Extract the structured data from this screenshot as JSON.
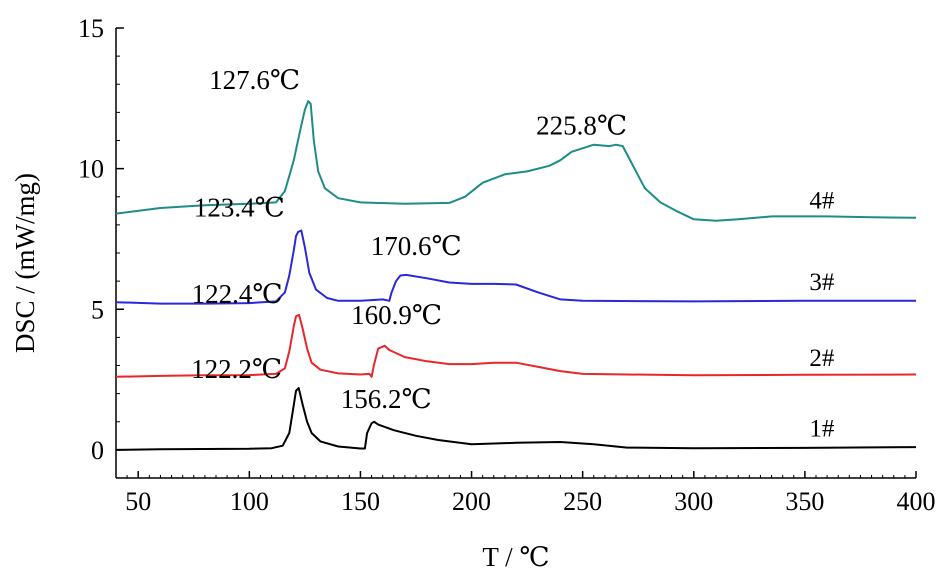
{
  "chart_data": {
    "type": "line",
    "xlabel": "T / ℃",
    "ylabel": "DSC / (mW/mg)",
    "xlim": [
      40,
      400
    ],
    "ylim": [
      -1,
      15
    ],
    "xticks": [
      50,
      100,
      150,
      200,
      250,
      300,
      350,
      400
    ],
    "yticks": [
      0,
      5,
      10,
      15
    ],
    "grid": false,
    "series": [
      {
        "name": "1#",
        "color": "#000000",
        "points": [
          [
            40,
            0.0
          ],
          [
            60,
            0.02
          ],
          [
            80,
            0.03
          ],
          [
            100,
            0.04
          ],
          [
            110,
            0.06
          ],
          [
            115,
            0.15
          ],
          [
            118,
            0.6
          ],
          [
            120,
            1.6
          ],
          [
            121,
            2.1
          ],
          [
            122.2,
            2.2
          ],
          [
            124,
            1.6
          ],
          [
            126,
            1.0
          ],
          [
            128,
            0.6
          ],
          [
            132,
            0.3
          ],
          [
            140,
            0.12
          ],
          [
            150,
            0.05
          ],
          [
            152,
            0.05
          ],
          [
            153,
            0.6
          ],
          [
            155,
            0.95
          ],
          [
            156.2,
            1.0
          ],
          [
            158,
            0.9
          ],
          [
            165,
            0.7
          ],
          [
            175,
            0.5
          ],
          [
            185,
            0.35
          ],
          [
            200,
            0.2
          ],
          [
            220,
            0.25
          ],
          [
            240,
            0.28
          ],
          [
            255,
            0.2
          ],
          [
            270,
            0.08
          ],
          [
            300,
            0.06
          ],
          [
            350,
            0.07
          ],
          [
            400,
            0.1
          ]
        ]
      },
      {
        "name": "2#",
        "color": "#e8262b",
        "points": [
          [
            40,
            2.6
          ],
          [
            60,
            2.63
          ],
          [
            80,
            2.65
          ],
          [
            100,
            2.66
          ],
          [
            112,
            2.7
          ],
          [
            116,
            2.9
          ],
          [
            118,
            3.5
          ],
          [
            120,
            4.4
          ],
          [
            121,
            4.75
          ],
          [
            122.4,
            4.8
          ],
          [
            124,
            4.3
          ],
          [
            126,
            3.6
          ],
          [
            128,
            3.1
          ],
          [
            132,
            2.85
          ],
          [
            140,
            2.72
          ],
          [
            150,
            2.68
          ],
          [
            154,
            2.7
          ],
          [
            155,
            2.6
          ],
          [
            156,
            3.0
          ],
          [
            158,
            3.6
          ],
          [
            160.9,
            3.7
          ],
          [
            163,
            3.55
          ],
          [
            170,
            3.3
          ],
          [
            180,
            3.15
          ],
          [
            190,
            3.05
          ],
          [
            200,
            3.05
          ],
          [
            210,
            3.1
          ],
          [
            220,
            3.1
          ],
          [
            230,
            2.95
          ],
          [
            240,
            2.8
          ],
          [
            250,
            2.7
          ],
          [
            300,
            2.65
          ],
          [
            350,
            2.67
          ],
          [
            400,
            2.68
          ]
        ]
      },
      {
        "name": "3#",
        "color": "#2a28d8",
        "points": [
          [
            40,
            5.25
          ],
          [
            60,
            5.2
          ],
          [
            80,
            5.2
          ],
          [
            100,
            5.22
          ],
          [
            112,
            5.28
          ],
          [
            116,
            5.6
          ],
          [
            118,
            6.2
          ],
          [
            120,
            7.1
          ],
          [
            121,
            7.6
          ],
          [
            122,
            7.75
          ],
          [
            123.4,
            7.8
          ],
          [
            125,
            7.2
          ],
          [
            127,
            6.3
          ],
          [
            130,
            5.7
          ],
          [
            135,
            5.4
          ],
          [
            140,
            5.3
          ],
          [
            150,
            5.3
          ],
          [
            160,
            5.35
          ],
          [
            163,
            5.3
          ],
          [
            164,
            5.6
          ],
          [
            166,
            6.0
          ],
          [
            168,
            6.2
          ],
          [
            170.6,
            6.22
          ],
          [
            180,
            6.1
          ],
          [
            190,
            5.95
          ],
          [
            200,
            5.9
          ],
          [
            210,
            5.9
          ],
          [
            220,
            5.88
          ],
          [
            230,
            5.6
          ],
          [
            240,
            5.35
          ],
          [
            250,
            5.3
          ],
          [
            300,
            5.28
          ],
          [
            350,
            5.3
          ],
          [
            400,
            5.3
          ]
        ]
      },
      {
        "name": "4#",
        "color": "#1e8c87",
        "points": [
          [
            40,
            8.4
          ],
          [
            60,
            8.6
          ],
          [
            80,
            8.7
          ],
          [
            100,
            8.75
          ],
          [
            112,
            8.8
          ],
          [
            116,
            9.2
          ],
          [
            120,
            10.3
          ],
          [
            123,
            11.4
          ],
          [
            125,
            12.1
          ],
          [
            126.5,
            12.4
          ],
          [
            127.6,
            12.3
          ],
          [
            129,
            11.0
          ],
          [
            131,
            9.9
          ],
          [
            134,
            9.3
          ],
          [
            140,
            8.95
          ],
          [
            150,
            8.8
          ],
          [
            170,
            8.75
          ],
          [
            190,
            8.78
          ],
          [
            197,
            9.0
          ],
          [
            205,
            9.5
          ],
          [
            215,
            9.8
          ],
          [
            225,
            9.9
          ],
          [
            235,
            10.1
          ],
          [
            240,
            10.3
          ],
          [
            245,
            10.6
          ],
          [
            255,
            10.85
          ],
          [
            262,
            10.8
          ],
          [
            265,
            10.85
          ],
          [
            268,
            10.8
          ],
          [
            272,
            10.2
          ],
          [
            278,
            9.3
          ],
          [
            285,
            8.8
          ],
          [
            292,
            8.5
          ],
          [
            300,
            8.2
          ],
          [
            310,
            8.15
          ],
          [
            320,
            8.2
          ],
          [
            335,
            8.3
          ],
          [
            360,
            8.3
          ],
          [
            380,
            8.27
          ],
          [
            400,
            8.25
          ]
        ]
      }
    ],
    "annotations": [
      {
        "text": "127.6℃",
        "x": 127.6,
        "y": 12.4
      },
      {
        "text": "225.8℃",
        "x": 245,
        "y": 10.85
      },
      {
        "text": "123.4℃",
        "x": 123.4,
        "y": 7.8
      },
      {
        "text": "170.6℃",
        "x": 170.6,
        "y": 6.22
      },
      {
        "text": "122.4℃",
        "x": 122.4,
        "y": 4.8
      },
      {
        "text": "160.9℃",
        "x": 160.9,
        "y": 3.7
      },
      {
        "text": "122.2℃",
        "x": 122.2,
        "y": 2.2
      },
      {
        "text": "156.2℃",
        "x": 156.2,
        "y": 1.0
      }
    ]
  }
}
